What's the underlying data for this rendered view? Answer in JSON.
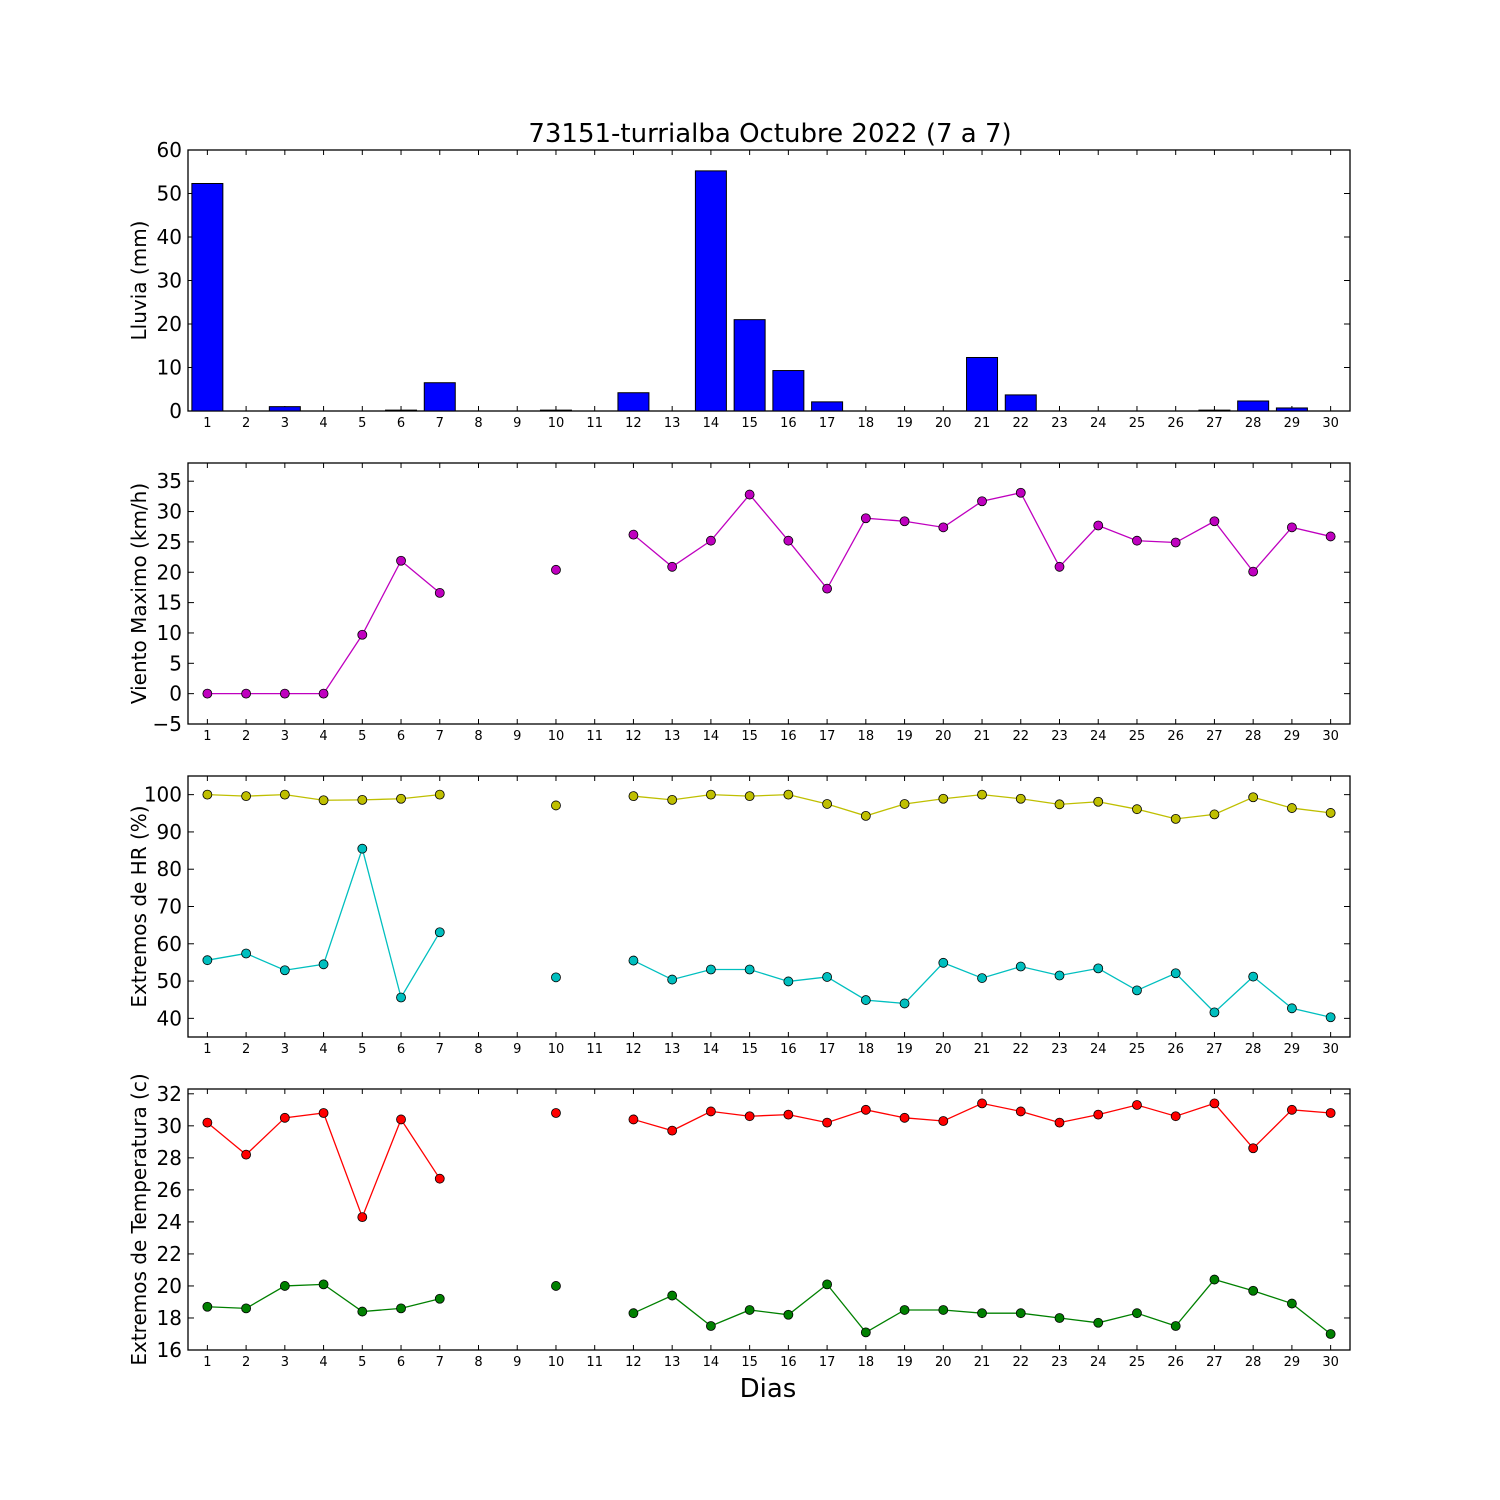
{
  "chart_data": {
    "title": "73151-turrialba Octubre 2022  (7 a 7)",
    "xlabel": "Dias",
    "x": [
      1,
      2,
      3,
      4,
      5,
      6,
      7,
      8,
      9,
      10,
      11,
      12,
      13,
      14,
      15,
      16,
      17,
      18,
      19,
      20,
      21,
      22,
      23,
      24,
      25,
      26,
      27,
      28,
      29,
      30
    ],
    "panels": [
      {
        "type": "bar",
        "ylabel": "Lluvia (mm)",
        "ylim": [
          0,
          60
        ],
        "yticks": [
          0,
          10,
          20,
          30,
          40,
          50,
          60
        ],
        "series": [
          {
            "color": "#0000ff",
            "values": [
              52.3,
              0,
              1.0,
              0,
              0,
              0.2,
              6.5,
              0,
              0,
              0.2,
              0,
              4.2,
              0,
              55.2,
              21.0,
              9.3,
              2.1,
              0,
              0,
              0,
              12.3,
              3.7,
              0,
              0,
              0,
              0,
              0.2,
              2.3,
              0.7,
              0
            ]
          }
        ]
      },
      {
        "type": "line",
        "ylabel": "Viento Maximo (km/h)",
        "ylim": [
          -5,
          38
        ],
        "yticks": [
          -5,
          0,
          5,
          10,
          15,
          20,
          25,
          30,
          35
        ],
        "series": [
          {
            "color": "#bf00bf",
            "values": [
              0,
              0,
              0,
              0,
              9.7,
              21.9,
              16.6,
              null,
              null,
              20.4,
              null,
              26.2,
              20.9,
              25.2,
              32.8,
              25.2,
              17.3,
              28.9,
              28.4,
              27.4,
              31.7,
              33.1,
              20.9,
              27.7,
              25.2,
              24.9,
              28.4,
              20.1,
              27.4,
              25.9
            ]
          }
        ]
      },
      {
        "type": "line",
        "ylabel": "Extremos de HR (%)",
        "ylim": [
          35,
          105
        ],
        "yticks": [
          40,
          50,
          60,
          70,
          80,
          90,
          100
        ],
        "series": [
          {
            "color": "#bfbf00",
            "values": [
              100,
              99.6,
              100,
              98.5,
              98.6,
              98.9,
              100,
              null,
              null,
              97.1,
              null,
              99.6,
              98.6,
              100,
              99.6,
              100,
              97.5,
              94.3,
              97.5,
              98.9,
              100,
              98.9,
              97.4,
              98.1,
              96.1,
              93.5,
              94.7,
              99.3,
              96.4,
              95.1
            ]
          },
          {
            "color": "#00bfbf",
            "values": [
              55.6,
              57.4,
              52.9,
              54.5,
              85.5,
              45.6,
              63.1,
              null,
              null,
              51.0,
              null,
              55.5,
              50.4,
              53.1,
              53.1,
              49.9,
              51.1,
              44.9,
              44.0,
              54.9,
              50.8,
              53.9,
              51.5,
              53.4,
              47.5,
              52.1,
              41.6,
              51.2,
              42.7,
              40.3
            ]
          }
        ]
      },
      {
        "type": "line",
        "ylabel": "Extremos de Temperatura (c)",
        "ylim": [
          16,
          32.3
        ],
        "yticks": [
          16,
          18,
          20,
          22,
          24,
          26,
          28,
          30,
          32
        ],
        "series": [
          {
            "color": "#ff0000",
            "values": [
              30.2,
              28.2,
              30.5,
              30.8,
              24.3,
              30.4,
              26.7,
              null,
              null,
              30.8,
              null,
              30.4,
              29.7,
              30.9,
              30.6,
              30.7,
              30.2,
              31.0,
              30.5,
              30.3,
              31.4,
              30.9,
              30.2,
              30.7,
              31.3,
              30.6,
              31.4,
              28.6,
              31.0,
              30.8
            ]
          },
          {
            "color": "#008000",
            "values": [
              18.7,
              18.6,
              20.0,
              20.1,
              18.4,
              18.6,
              19.2,
              null,
              null,
              20.0,
              null,
              18.3,
              19.4,
              17.5,
              18.5,
              18.2,
              20.1,
              17.1,
              18.5,
              18.5,
              18.3,
              18.3,
              18.0,
              17.7,
              18.3,
              17.5,
              20.4,
              19.7,
              18.9,
              17.0
            ]
          }
        ]
      }
    ]
  }
}
